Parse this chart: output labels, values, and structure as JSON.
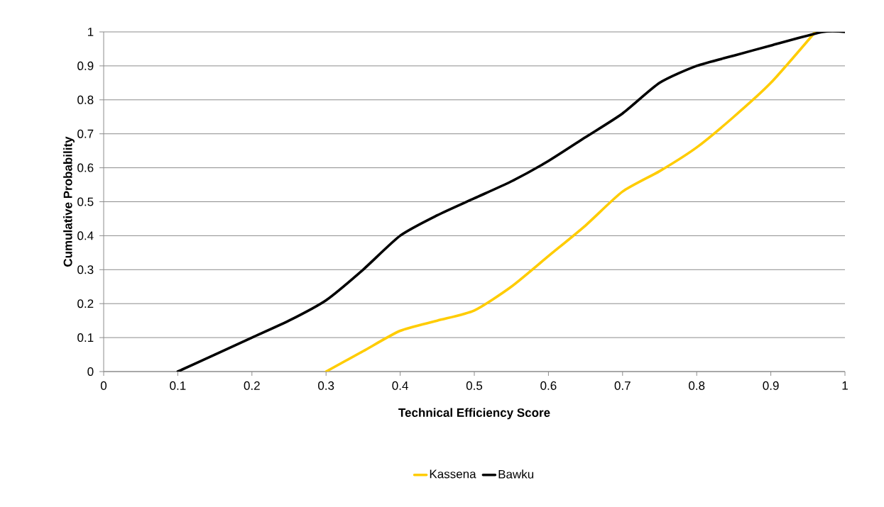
{
  "chart_data": {
    "type": "line",
    "xlabel": "Technical Efficiency Score",
    "ylabel": "Cumulative Probability",
    "xlim": [
      0,
      1
    ],
    "ylim": [
      0,
      1
    ],
    "xticks": [
      0,
      0.1,
      0.2,
      0.3,
      0.4,
      0.5,
      0.6,
      0.7,
      0.8,
      0.9,
      1
    ],
    "yticks": [
      0,
      0.1,
      0.2,
      0.3,
      0.4,
      0.5,
      0.6,
      0.7,
      0.8,
      0.9,
      1
    ],
    "grid": "y",
    "legend": "bottom",
    "marker": "none",
    "line_style": "solid",
    "series": [
      {
        "name": "Kassena",
        "color": "#ffcc00",
        "x": [
          0.3,
          0.35,
          0.4,
          0.45,
          0.5,
          0.55,
          0.6,
          0.65,
          0.7,
          0.75,
          0.8,
          0.85,
          0.9,
          0.96
        ],
        "values": [
          0,
          0.06,
          0.12,
          0.15,
          0.18,
          0.25,
          0.34,
          0.43,
          0.53,
          0.59,
          0.66,
          0.75,
          0.85,
          1
        ]
      },
      {
        "name": "Bawku",
        "color": "#000000",
        "x": [
          0.1,
          0.15,
          0.2,
          0.25,
          0.3,
          0.35,
          0.4,
          0.45,
          0.5,
          0.55,
          0.6,
          0.65,
          0.7,
          0.75,
          0.8,
          0.85,
          0.9,
          0.97,
          1
        ],
        "values": [
          0,
          0.05,
          0.1,
          0.15,
          0.21,
          0.3,
          0.4,
          0.46,
          0.51,
          0.56,
          0.62,
          0.69,
          0.76,
          0.85,
          0.9,
          0.93,
          0.96,
          1,
          1
        ]
      }
    ]
  }
}
